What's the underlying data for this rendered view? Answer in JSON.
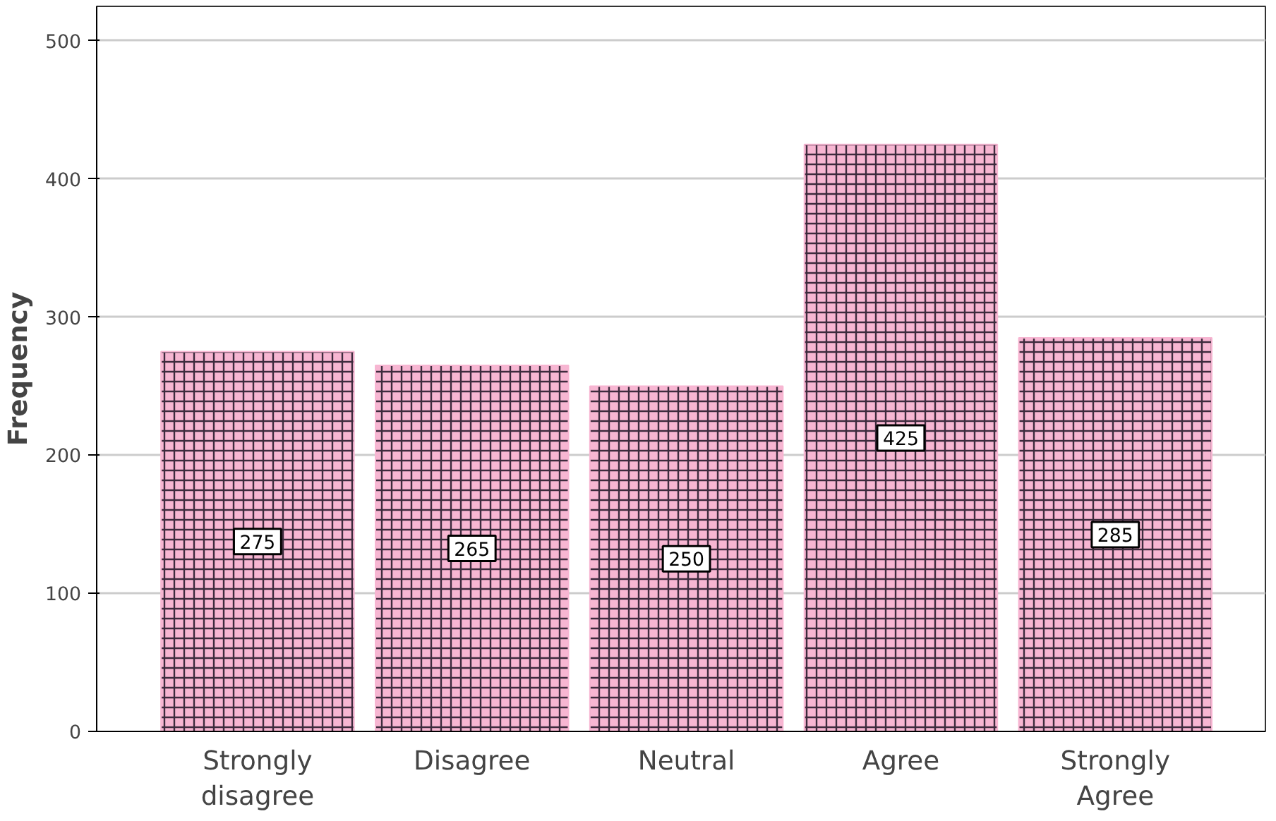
{
  "chart_data": {
    "type": "bar",
    "ylabel": "Frequency",
    "categories": [
      "Strongly disagree",
      "Disagree",
      "Neutral",
      "Agree",
      "Strongly Agree"
    ],
    "values": [
      275,
      265,
      250,
      425,
      285
    ],
    "color": "#f7b6d2",
    "ylim": [
      0,
      525
    ],
    "yticks": [
      0,
      100,
      200,
      300,
      400,
      500
    ],
    "grid": "y",
    "data_labels": true
  }
}
